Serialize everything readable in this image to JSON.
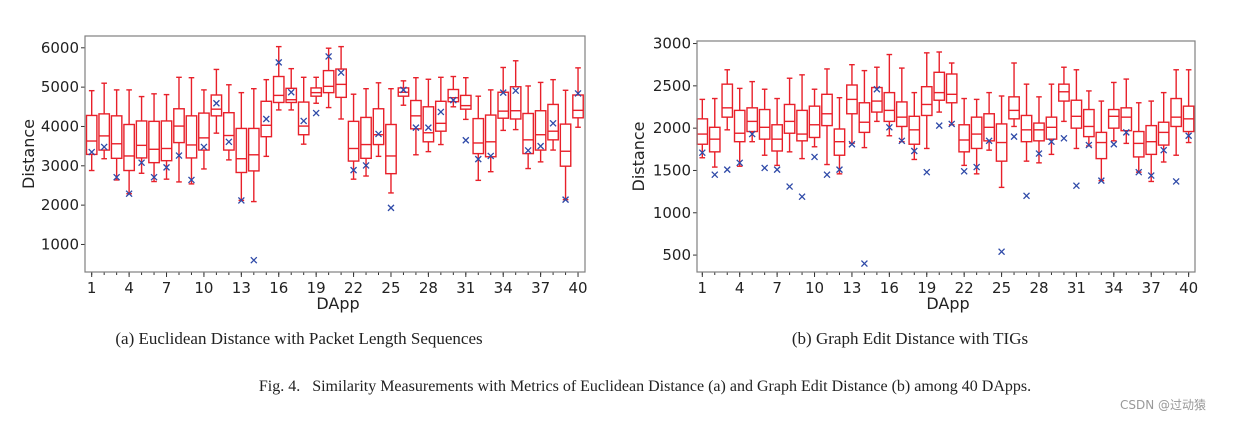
{
  "figure_caption": "Fig. 4.   Similarity Measurements with Metrics of Euclidean Distance (a) and Graph Edit Distance (b) among 40 DApps.",
  "watermark": "CSDN @过动猿",
  "colors": {
    "box": "#e8202a",
    "mean_marker": "#2f4aa8",
    "axes": "#808080"
  },
  "chart_data": [
    {
      "type": "box",
      "caption": "(a) Euclidean Distance with Packet Length Sequences",
      "xlabel": "DApp",
      "ylabel": "Distance",
      "ylim": [
        300,
        6300
      ],
      "yticks": [
        1000,
        2000,
        3000,
        4000,
        5000,
        6000
      ],
      "xticks": [
        1,
        4,
        7,
        10,
        13,
        16,
        19,
        22,
        25,
        28,
        31,
        34,
        37,
        40
      ],
      "categories": [
        1,
        2,
        3,
        4,
        5,
        6,
        7,
        8,
        9,
        10,
        11,
        12,
        13,
        14,
        15,
        16,
        17,
        18,
        19,
        20,
        21,
        22,
        23,
        24,
        25,
        26,
        27,
        28,
        29,
        30,
        31,
        32,
        33,
        34,
        35,
        36,
        37,
        38,
        39,
        40
      ],
      "box_fields": [
        "whisker_low",
        "q1",
        "median",
        "q3",
        "whisker_high"
      ],
      "boxes": [
        [
          2880,
          3290,
          3630,
          4280,
          4910
        ],
        [
          3180,
          3400,
          3760,
          4320,
          5100
        ],
        [
          2640,
          3190,
          3560,
          4270,
          4930
        ],
        [
          2290,
          2880,
          3250,
          4050,
          4930
        ],
        [
          2810,
          3200,
          3520,
          4140,
          4760
        ],
        [
          2600,
          3080,
          3420,
          4130,
          4830
        ],
        [
          2660,
          3130,
          3440,
          4140,
          4810
        ],
        [
          2590,
          3590,
          4010,
          4450,
          5250
        ],
        [
          2540,
          3200,
          3530,
          4270,
          5240
        ],
        [
          2920,
          3400,
          3710,
          4340,
          4930
        ],
        [
          3830,
          4270,
          4440,
          4800,
          5450
        ],
        [
          3150,
          3400,
          3770,
          4350,
          5060
        ],
        [
          2120,
          2830,
          3180,
          3950,
          4860
        ],
        [
          2090,
          2870,
          3280,
          3950,
          4960
        ],
        [
          3240,
          3740,
          4030,
          4640,
          5190
        ],
        [
          4420,
          4610,
          4790,
          5270,
          6030
        ],
        [
          4420,
          4610,
          4680,
          4970,
          5470
        ],
        [
          3550,
          3790,
          4010,
          4620,
          5250
        ],
        [
          4590,
          4770,
          4860,
          4980,
          5250
        ],
        [
          4480,
          4860,
          5020,
          5420,
          5990
        ],
        [
          4190,
          4740,
          5070,
          5460,
          6030
        ],
        [
          2660,
          3120,
          3440,
          4130,
          4820
        ],
        [
          2740,
          3190,
          3540,
          4230,
          4960
        ],
        [
          3240,
          3540,
          3790,
          4450,
          5110
        ],
        [
          2310,
          2800,
          3250,
          4050,
          4960
        ],
        [
          4540,
          4770,
          4870,
          4980,
          5160
        ],
        [
          3280,
          3940,
          4270,
          4660,
          5240
        ],
        [
          3360,
          3610,
          3840,
          4500,
          5200
        ],
        [
          3540,
          3880,
          4080,
          4640,
          5250
        ],
        [
          4500,
          4630,
          4730,
          4940,
          5270
        ],
        [
          4180,
          4440,
          4530,
          4790,
          5240
        ],
        [
          2630,
          3310,
          3580,
          4200,
          4770
        ],
        [
          2850,
          3230,
          3610,
          4290,
          4930
        ],
        [
          3900,
          4210,
          4390,
          4870,
          5500
        ],
        [
          3920,
          4190,
          4400,
          5010,
          5670
        ],
        [
          2930,
          3310,
          3660,
          4330,
          5030
        ],
        [
          3100,
          3400,
          3790,
          4400,
          5120
        ],
        [
          3400,
          3660,
          3880,
          4560,
          5190
        ],
        [
          2140,
          2990,
          3370,
          4060,
          4920
        ],
        [
          3980,
          4220,
          4410,
          4800,
          5490
        ]
      ],
      "means": [
        3350,
        3480,
        2710,
        2290,
        3080,
        2710,
        2960,
        3260,
        2640,
        3480,
        4590,
        3610,
        2120,
        600,
        4190,
        5630,
        4870,
        4140,
        4340,
        5780,
        5370,
        2890,
        3010,
        3810,
        1930,
        4930,
        3970,
        3970,
        4370,
        4670,
        3650,
        3170,
        3250,
        4860,
        4910,
        3390,
        3500,
        4080,
        2140,
        4840
      ]
    },
    {
      "type": "box",
      "caption": "(b) Graph Edit Distance with TIGs",
      "xlabel": "DApp",
      "ylabel": "Distance",
      "ylim": [
        300,
        3030
      ],
      "yticks": [
        500,
        1000,
        1500,
        2000,
        2500,
        3000
      ],
      "xticks": [
        1,
        4,
        7,
        10,
        13,
        16,
        19,
        22,
        25,
        28,
        31,
        34,
        37,
        40
      ],
      "categories": [
        1,
        2,
        3,
        4,
        5,
        6,
        7,
        8,
        9,
        10,
        11,
        12,
        13,
        14,
        15,
        16,
        17,
        18,
        19,
        20,
        21,
        22,
        23,
        24,
        25,
        26,
        27,
        28,
        29,
        30,
        31,
        32,
        33,
        34,
        35,
        36,
        37,
        38,
        39,
        40
      ],
      "box_fields": [
        "whisker_low",
        "q1",
        "median",
        "q3",
        "whisker_high"
      ],
      "boxes": [
        [
          1650,
          1810,
          1930,
          2110,
          2340
        ],
        [
          1540,
          1720,
          1870,
          2010,
          2350
        ],
        [
          1980,
          2130,
          2240,
          2520,
          2690
        ],
        [
          1550,
          1840,
          1940,
          2210,
          2470
        ],
        [
          1840,
          1960,
          2080,
          2240,
          2550
        ],
        [
          1680,
          1870,
          2010,
          2220,
          2460
        ],
        [
          1560,
          1730,
          1870,
          2040,
          2350
        ],
        [
          1720,
          1940,
          2080,
          2280,
          2590
        ],
        [
          1640,
          1850,
          1930,
          2210,
          2630
        ],
        [
          1780,
          1890,
          2040,
          2260,
          2460
        ],
        [
          1570,
          2030,
          2170,
          2400,
          2700
        ],
        [
          1460,
          1680,
          1840,
          1990,
          2360
        ],
        [
          1820,
          2170,
          2340,
          2510,
          2750
        ],
        [
          1770,
          1950,
          2070,
          2300,
          2680
        ],
        [
          2080,
          2190,
          2320,
          2480,
          2720
        ],
        [
          1910,
          2080,
          2210,
          2420,
          2870
        ],
        [
          1840,
          2020,
          2130,
          2310,
          2710
        ],
        [
          1630,
          1810,
          1980,
          2140,
          2420
        ],
        [
          1760,
          2150,
          2280,
          2490,
          2890
        ],
        [
          2190,
          2330,
          2420,
          2660,
          2900
        ],
        [
          2040,
          2300,
          2400,
          2640,
          2770
        ],
        [
          1560,
          1720,
          1860,
          2040,
          2350
        ],
        [
          1460,
          1760,
          1930,
          2130,
          2340
        ],
        [
          1740,
          1850,
          2010,
          2170,
          2420
        ],
        [
          1300,
          1610,
          1830,
          2050,
          2380
        ],
        [
          2020,
          2110,
          2210,
          2370,
          2770
        ],
        [
          1610,
          1840,
          1980,
          2150,
          2520
        ],
        [
          1590,
          1850,
          1980,
          2060,
          2370
        ],
        [
          1690,
          1870,
          2010,
          2130,
          2520
        ],
        [
          2080,
          2320,
          2430,
          2520,
          2720
        ],
        [
          1760,
          2000,
          2140,
          2330,
          2690
        ],
        [
          1790,
          1900,
          2020,
          2220,
          2440
        ],
        [
          1380,
          1640,
          1830,
          1950,
          2320
        ],
        [
          1850,
          2000,
          2140,
          2220,
          2540
        ],
        [
          1820,
          1970,
          2130,
          2240,
          2580
        ],
        [
          1480,
          1660,
          1820,
          1960,
          2300
        ],
        [
          1370,
          1690,
          1840,
          2030,
          2320
        ],
        [
          1600,
          1800,
          1950,
          2070,
          2420
        ],
        [
          1680,
          2020,
          2130,
          2350,
          2690
        ],
        [
          1830,
          1960,
          2110,
          2260,
          2690
        ]
      ],
      "means": [
        1710,
        1450,
        1510,
        1590,
        1930,
        1530,
        1510,
        1310,
        1190,
        1660,
        1450,
        1510,
        1810,
        400,
        2460,
        2010,
        1850,
        1730,
        1480,
        2030,
        2050,
        1490,
        1540,
        1850,
        540,
        1900,
        1200,
        1700,
        1840,
        1880,
        1320,
        1800,
        1380,
        1810,
        1950,
        1480,
        1440,
        1740,
        1370,
        1910
      ]
    }
  ]
}
